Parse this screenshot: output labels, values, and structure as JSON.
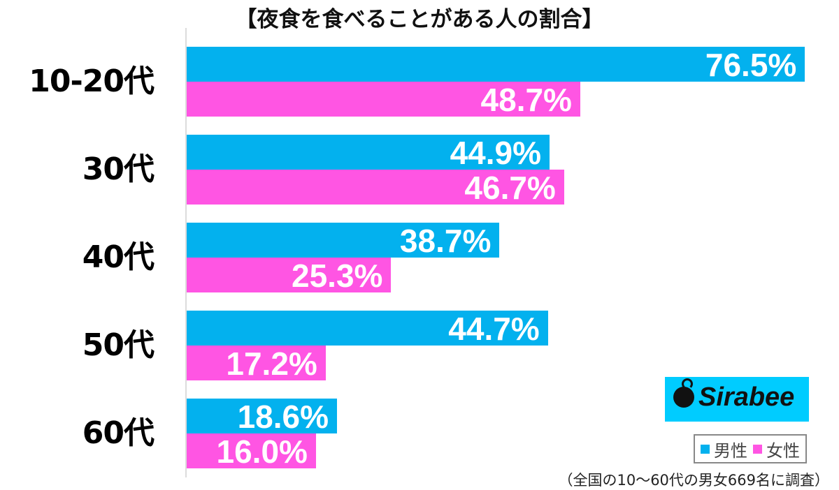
{
  "title": "【夜食を食べることがある人の割合】",
  "colors": {
    "male": "#03b1ee",
    "female": "#ff55e3"
  },
  "legend": {
    "male": "男性",
    "female": "女性"
  },
  "logo": {
    "text": "Sirabee"
  },
  "note": "（全国の10〜60代の男女669名に調査）",
  "chart_data": {
    "type": "bar",
    "orientation": "horizontal",
    "title": "【夜食を食べることがある人の割合】",
    "categories": [
      "10-20代",
      "30代",
      "40代",
      "50代",
      "60代"
    ],
    "series": [
      {
        "name": "男性",
        "values": [
          76.5,
          44.9,
          38.7,
          44.7,
          18.6
        ]
      },
      {
        "name": "女性",
        "values": [
          48.7,
          46.7,
          25.3,
          17.2,
          16.0
        ]
      }
    ],
    "labels": {
      "male": [
        "76.5%",
        "44.9%",
        "38.7%",
        "44.7%",
        "18.6%"
      ],
      "female": [
        "48.7%",
        "46.7%",
        "25.3%",
        "17.2%",
        "16.0%"
      ]
    },
    "xlabel": "",
    "ylabel": "",
    "unit": "%",
    "legend_position": "bottom-right",
    "grid": false,
    "annotation": "（全国の10〜60代の男女669名に調査）"
  }
}
